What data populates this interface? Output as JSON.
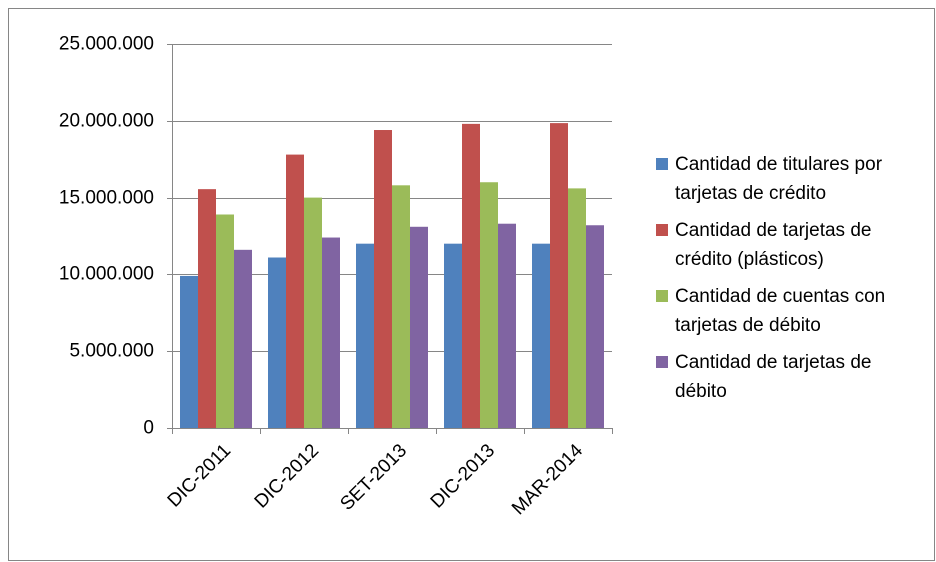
{
  "chart_data": {
    "type": "bar",
    "categories": [
      "DIC-2011",
      "DIC-2012",
      "SET-2013",
      "DIC-2013",
      "MAR-2014"
    ],
    "series": [
      {
        "name": "Cantidad de titulares por tarjetas de crédito",
        "color": "#4f81bd",
        "values": [
          9900000,
          11100000,
          12000000,
          12000000,
          12000000
        ]
      },
      {
        "name": "Cantidad de tarjetas de crédito (plásticos)",
        "color": "#c0504d",
        "values": [
          15550000,
          17800000,
          19400000,
          19800000,
          19850000
        ]
      },
      {
        "name": "Cantidad de cuentas con tarjetas de débito",
        "color": "#9bbb59",
        "values": [
          13900000,
          15000000,
          15800000,
          16000000,
          15600000
        ]
      },
      {
        "name": "Cantidad de tarjetas de débito",
        "color": "#8064a2",
        "values": [
          11600000,
          12400000,
          13100000,
          13300000,
          13200000
        ]
      }
    ],
    "ylim": [
      0,
      25000000
    ],
    "yticks": [
      0,
      {
        "value": 5000000,
        "label": "5.000.000"
      },
      {
        "value": 10000000,
        "label": "10.000.000"
      },
      {
        "value": 15000000,
        "label": "15.000.000"
      },
      {
        "value": 20000000,
        "label": "20.000.000"
      },
      {
        "value": 25000000,
        "label": "25.000.000"
      }
    ],
    "grid": true,
    "legend": "right"
  }
}
